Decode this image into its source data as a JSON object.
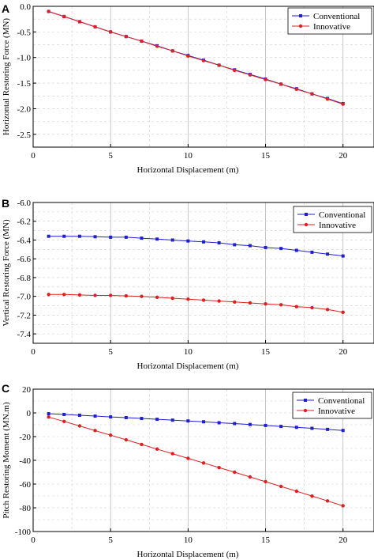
{
  "chart_data": [
    {
      "panel": "A",
      "type": "line",
      "xlabel": "Horizontal Displacement (m)",
      "ylabel": "Horizontal Restoring Force (MN)",
      "xlim": [
        0,
        22
      ],
      "ylim": [
        -2.75,
        0
      ],
      "xticks": [
        "0",
        "5",
        "10",
        "15",
        "20"
      ],
      "yticks": [
        "0.0",
        "-0.5",
        "-1.0",
        "-1.5",
        "-2.0",
        "-2.5"
      ],
      "grid": "major x solid, minor y dashed",
      "legend": "top-right",
      "x": [
        1,
        2,
        3,
        4,
        5,
        6,
        7,
        8,
        9,
        10,
        11,
        12,
        13,
        14,
        15,
        16,
        17,
        18,
        19,
        20
      ],
      "series": [
        {
          "name": "Conventional",
          "color": "#1f1fd0",
          "marker": "square",
          "values": [
            -0.1,
            -0.2,
            -0.3,
            -0.4,
            -0.5,
            -0.59,
            -0.68,
            -0.77,
            -0.87,
            -0.96,
            -1.05,
            -1.15,
            -1.24,
            -1.33,
            -1.42,
            -1.52,
            -1.61,
            -1.71,
            -1.8,
            -1.9
          ]
        },
        {
          "name": "Innovative",
          "color": "#e02020",
          "marker": "circle",
          "values": [
            -0.1,
            -0.2,
            -0.3,
            -0.4,
            -0.5,
            -0.59,
            -0.68,
            -0.78,
            -0.87,
            -0.97,
            -1.06,
            -1.15,
            -1.25,
            -1.34,
            -1.43,
            -1.52,
            -1.62,
            -1.71,
            -1.81,
            -1.91
          ]
        }
      ]
    },
    {
      "panel": "B",
      "type": "line",
      "xlabel": "Horizontal Displacement (m)",
      "ylabel": "Vertical Restoring Force (MN)",
      "xlim": [
        0,
        22
      ],
      "ylim": [
        -7.5,
        -6.0
      ],
      "xticks": [
        "0",
        "5",
        "10",
        "15",
        "20"
      ],
      "yticks": [
        "-6.0",
        "-6.2",
        "-6.4",
        "-6.6",
        "-6.8",
        "-7.0",
        "-7.2",
        "-7.4"
      ],
      "grid": "major x solid, minor y dashed",
      "legend": "top-right",
      "x": [
        1,
        2,
        3,
        4,
        5,
        6,
        7,
        8,
        9,
        10,
        11,
        12,
        13,
        14,
        15,
        16,
        17,
        18,
        19,
        20
      ],
      "series": [
        {
          "name": "Conventional",
          "color": "#1f1fd0",
          "marker": "square",
          "values": [
            -6.36,
            -6.36,
            -6.36,
            -6.365,
            -6.37,
            -6.37,
            -6.38,
            -6.39,
            -6.4,
            -6.41,
            -6.42,
            -6.43,
            -6.45,
            -6.46,
            -6.48,
            -6.49,
            -6.51,
            -6.53,
            -6.55,
            -6.57
          ]
        },
        {
          "name": "Innovative",
          "color": "#e02020",
          "marker": "circle",
          "values": [
            -6.98,
            -6.98,
            -6.985,
            -6.99,
            -6.99,
            -6.995,
            -7.0,
            -7.01,
            -7.02,
            -7.03,
            -7.04,
            -7.05,
            -7.06,
            -7.07,
            -7.08,
            -7.09,
            -7.11,
            -7.12,
            -7.14,
            -7.17
          ]
        }
      ]
    },
    {
      "panel": "C",
      "type": "line",
      "xlabel": "Horizontal Displacement (m)",
      "ylabel": "Pitch Restoring Moment (MN.m)",
      "xlim": [
        0,
        22
      ],
      "ylim": [
        -100,
        20
      ],
      "xticks": [
        "0",
        "5",
        "10",
        "15",
        "20"
      ],
      "yticks": [
        "20",
        "0",
        "-20",
        "-40",
        "-60",
        "-80",
        "-100"
      ],
      "grid": "major x solid, minor y dashed",
      "legend": "top-right",
      "x": [
        1,
        2,
        3,
        4,
        5,
        6,
        7,
        8,
        9,
        10,
        11,
        12,
        13,
        14,
        15,
        16,
        17,
        18,
        19,
        20
      ],
      "series": [
        {
          "name": "Conventional",
          "color": "#1f1fd0",
          "marker": "square",
          "values": [
            -0.7,
            -1.3,
            -2.0,
            -2.7,
            -3.4,
            -4.0,
            -4.7,
            -5.4,
            -6.1,
            -6.8,
            -7.5,
            -8.3,
            -9.0,
            -9.8,
            -10.6,
            -11.4,
            -12.2,
            -13.0,
            -13.9,
            -14.8
          ]
        },
        {
          "name": "Innovative",
          "color": "#e02020",
          "marker": "circle",
          "values": [
            -3.5,
            -7.2,
            -11.0,
            -14.9,
            -18.8,
            -22.7,
            -26.6,
            -30.5,
            -34.4,
            -38.3,
            -42.2,
            -46.1,
            -50.0,
            -54.0,
            -58.0,
            -62.0,
            -66.0,
            -70.1,
            -74.2,
            -78.3
          ]
        }
      ]
    }
  ]
}
